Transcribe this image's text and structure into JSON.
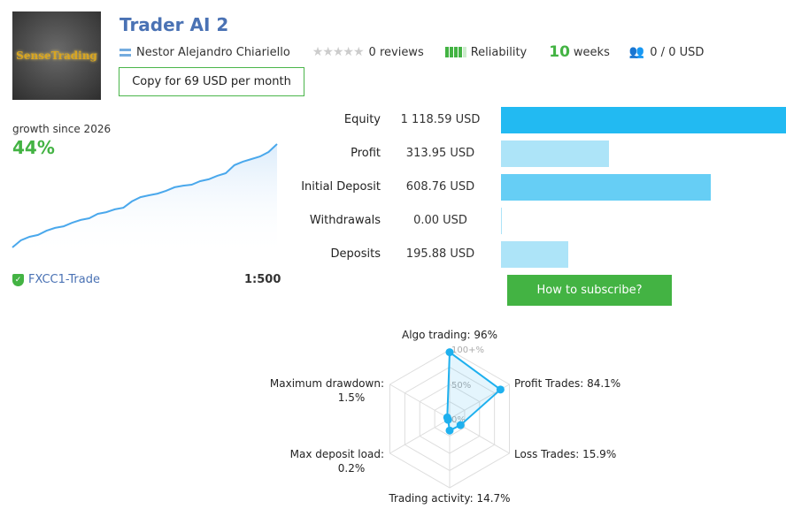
{
  "header": {
    "logo_text": "SenseTrading",
    "title": "Trader AI 2",
    "author": "Nestor Alejandro Chiariello",
    "reviews": "0 reviews",
    "rating_stars": 0,
    "reliability_label": "Reliability",
    "reliability_level": 4,
    "reliability_max": 5,
    "weeks_value": "10",
    "weeks_label": "weeks",
    "subscribers": "0 / 0 USD",
    "copy_button": "Copy for 69 USD per month"
  },
  "growth": {
    "label": "growth since 2026",
    "value": "44%",
    "broker": "FXCC1-Trade",
    "leverage": "1:500",
    "series": [
      0,
      3.0,
      4.5,
      5.3,
      7.1,
      8.3,
      9.0,
      10.5,
      11.7,
      12.4,
      14.3,
      15.0,
      16.2,
      16.9,
      19.6,
      21.4,
      22.2,
      22.9,
      24.1,
      25.6,
      26.3,
      26.7,
      28.2,
      29.0,
      30.5,
      31.6,
      35.0,
      36.5,
      37.6,
      38.7,
      40.6,
      44
    ]
  },
  "stats": [
    {
      "label": "Equity",
      "value": "1 118.59 USD",
      "amount": 1118.59,
      "color": "#22baf2"
    },
    {
      "label": "Profit",
      "value": "313.95 USD",
      "amount": 313.95,
      "color": "#ade4f8"
    },
    {
      "label": "Initial Deposit",
      "value": "608.76 USD",
      "amount": 608.76,
      "color": "#66cef5"
    },
    {
      "label": "Withdrawals",
      "value": "0.00 USD",
      "amount": 0,
      "color": "#ade4f8"
    },
    {
      "label": "Deposits",
      "value": "195.88 USD",
      "amount": 195.88,
      "color": "#ade4f8"
    }
  ],
  "subscribe_button": "How to subscribe?",
  "radar": {
    "ticks": [
      "100+%",
      "50%",
      "0%"
    ],
    "color": "#1eb0ee",
    "axes": [
      {
        "label": "Algo trading: 96%",
        "value": 96
      },
      {
        "label": "Profit Trades: 84.1%",
        "value": 84.1
      },
      {
        "label": "Loss Trades: 15.9%",
        "value": 15.9
      },
      {
        "label": "Trading activity: 14.7%",
        "value": 14.7
      },
      {
        "label": "Max deposit load:",
        "label2": "0.2%",
        "value": 0.2
      },
      {
        "label": "Maximum drawdown:",
        "label2": "1.5%",
        "value": 1.5
      }
    ]
  }
}
